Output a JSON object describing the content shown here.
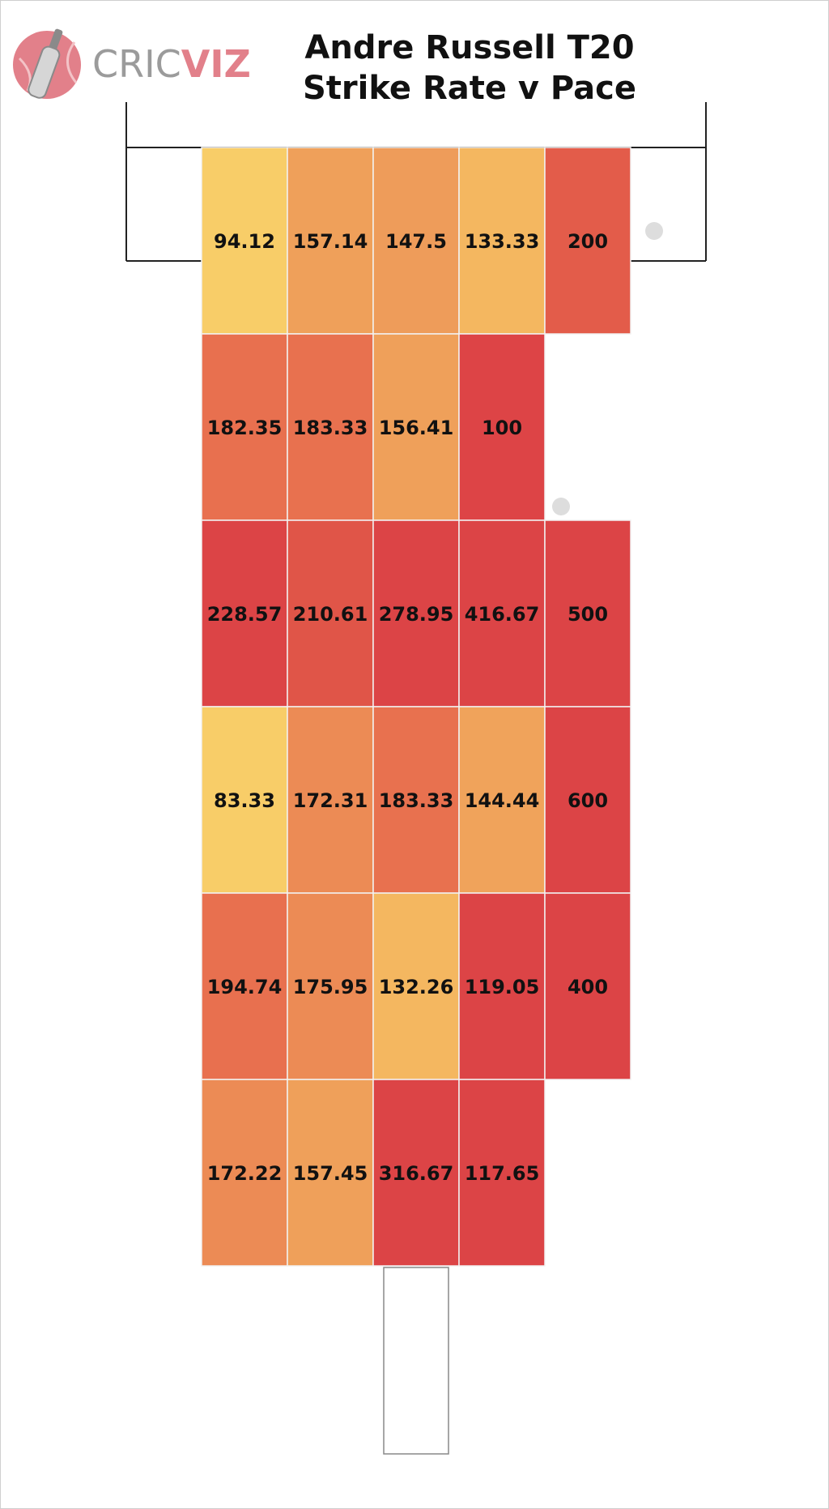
{
  "brand": {
    "part1": "CRIC",
    "part2": "VIZ",
    "accent": "#e2808a",
    "grey": "#9b9b9b",
    "icon": "cricket-bat-ball-icon"
  },
  "chart_data": {
    "type": "heatmap",
    "title_line1": "Andre Russell T20",
    "title_line2": "Strike Rate v Pace",
    "rows": 6,
    "cols": 5,
    "values": [
      [
        94.12,
        157.14,
        147.5,
        133.33,
        200
      ],
      [
        182.35,
        183.33,
        156.41,
        100,
        null
      ],
      [
        228.57,
        210.61,
        278.95,
        416.67,
        500
      ],
      [
        83.33,
        172.31,
        183.33,
        144.44,
        600
      ],
      [
        194.74,
        175.95,
        132.26,
        119.05,
        400
      ],
      [
        172.22,
        157.45,
        316.67,
        117.65,
        null
      ]
    ],
    "labels": [
      [
        "94.12",
        "157.14",
        "147.5",
        "133.33",
        "200"
      ],
      [
        "182.35",
        "183.33",
        "156.41",
        "100",
        ""
      ],
      [
        "228.57",
        "210.61",
        "278.95",
        "416.67",
        "500"
      ],
      [
        "83.33",
        "172.31",
        "183.33",
        "144.44",
        "600"
      ],
      [
        "194.74",
        "175.95",
        "132.26",
        "119.05",
        "400"
      ],
      [
        "172.22",
        "157.45",
        "316.67",
        "117.65",
        ""
      ]
    ],
    "colors": [
      [
        "#f8cd68",
        "#efa05a",
        "#ee9c5a",
        "#f4b760",
        "#e35c4a"
      ],
      [
        "#e8704f",
        "#e8714f",
        "#efa05a",
        "#dd4446",
        null
      ],
      [
        "#dc4446",
        "#e05548",
        "#dc4446",
        "#dc4446",
        "#dc4446"
      ],
      [
        "#f8cd68",
        "#ec8b55",
        "#e8714f",
        "#f0a35b",
        "#dc4446"
      ],
      [
        "#e8704f",
        "#ec8b55",
        "#f4b760",
        "#dc4446",
        "#dc4446"
      ],
      [
        "#ec8b55",
        "#efa05a",
        "#dc4446",
        "#dc4446",
        null
      ]
    ]
  }
}
